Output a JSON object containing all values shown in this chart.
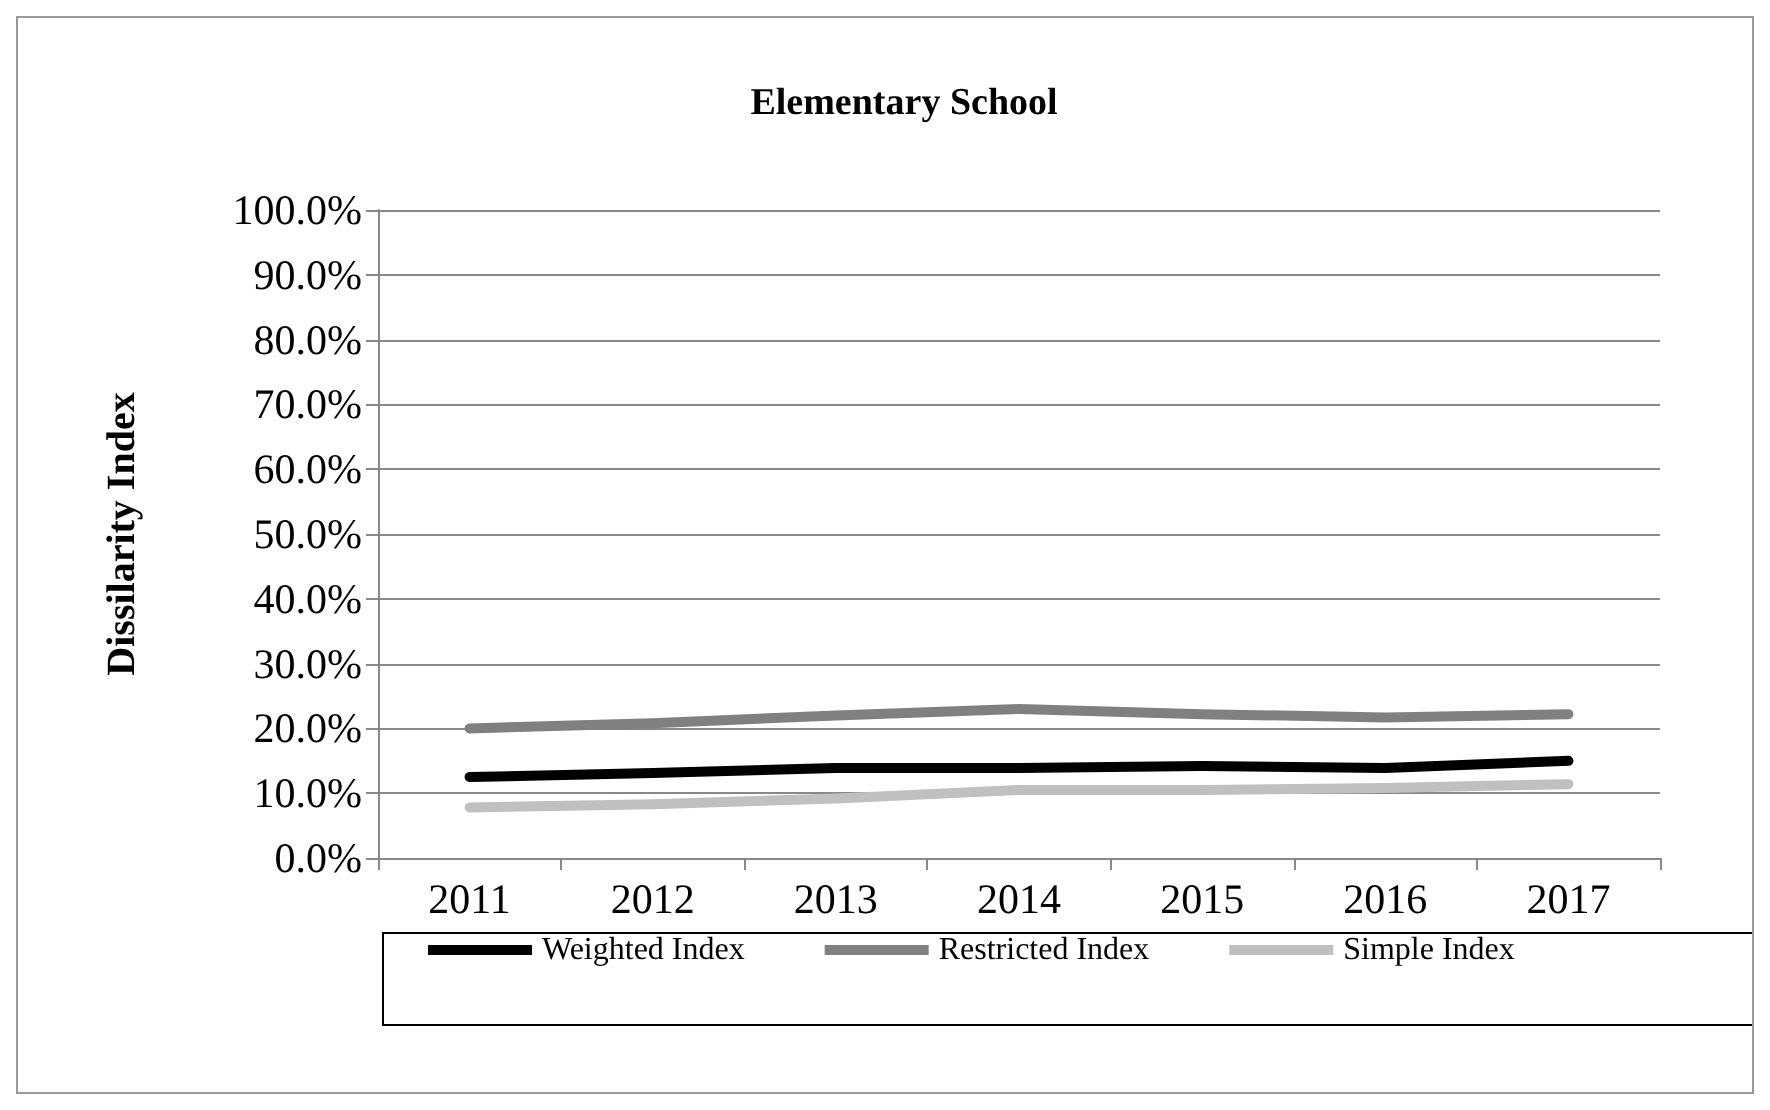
{
  "chart_data": {
    "type": "line",
    "title": "Elementary School",
    "ylabel": "Dissilarity Index",
    "categories": [
      "2011",
      "2012",
      "2013",
      "2014",
      "2015",
      "2016",
      "2017"
    ],
    "series": [
      {
        "name": "Weighted Index",
        "color": "#000000",
        "values": [
          12.5,
          13.1,
          13.9,
          13.9,
          14.2,
          13.9,
          15.0
        ]
      },
      {
        "name": "Restricted Index",
        "color": "#808080",
        "values": [
          20.0,
          20.8,
          22.0,
          23.0,
          22.2,
          21.7,
          22.2
        ]
      },
      {
        "name": "Simple Index",
        "color": "#c0c0c0",
        "values": [
          7.8,
          8.3,
          9.2,
          10.5,
          10.5,
          10.8,
          11.4
        ]
      }
    ],
    "ylim": [
      0,
      100
    ],
    "yticks": [
      {
        "value": 0,
        "label": "0.0%"
      },
      {
        "value": 10,
        "label": "10.0%"
      },
      {
        "value": 20,
        "label": "20.0%"
      },
      {
        "value": 30,
        "label": "30.0%"
      },
      {
        "value": 40,
        "label": "40.0%"
      },
      {
        "value": 50,
        "label": "50.0%"
      },
      {
        "value": 60,
        "label": "60.0%"
      },
      {
        "value": 70,
        "label": "70.0%"
      },
      {
        "value": 80,
        "label": "80.0%"
      },
      {
        "value": 90,
        "label": "90.0%"
      },
      {
        "value": 100,
        "label": "100.0%"
      }
    ],
    "grid": "y",
    "legend": "bottom",
    "marker": "none",
    "line_style": "solid"
  }
}
